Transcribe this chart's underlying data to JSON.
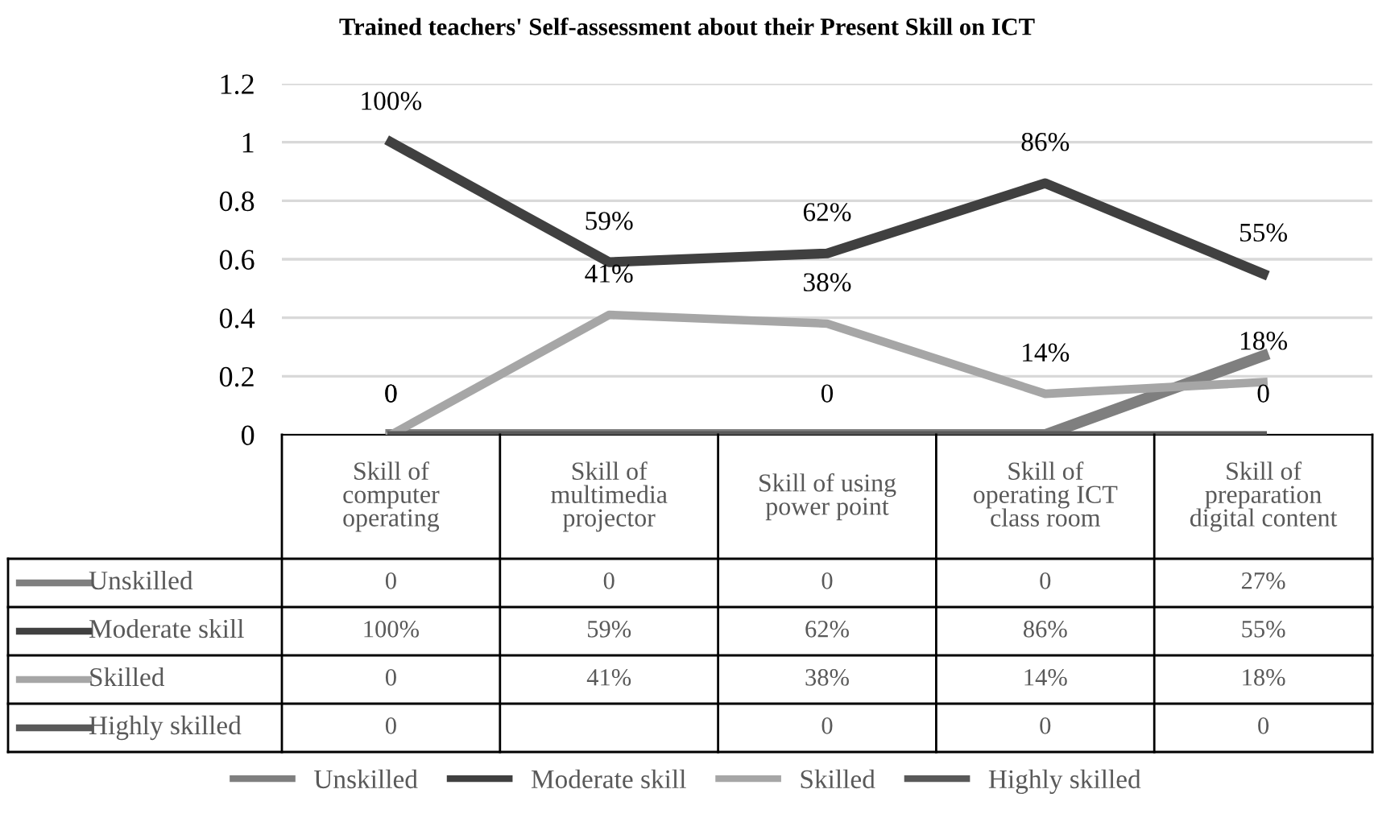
{
  "chart_data": {
    "type": "line",
    "title": "Trained teachers' Self-assessment about their Present Skill on ICT",
    "categories": [
      "Skill of\ncomputer\noperating",
      "Skill of\nmultimedia\nprojector",
      "Skill of using\npower point",
      "Skill of\noperating ICT\nclass room",
      "Skill of\npreparation\ndigital content"
    ],
    "series": [
      {
        "name": "Unskilled",
        "color": "#7f7f7f",
        "values": [
          0,
          0,
          0,
          0,
          0.27
        ],
        "value_labels": [
          "0",
          "0",
          "0",
          "0",
          "27%"
        ]
      },
      {
        "name": "Moderate skill",
        "color": "#404040",
        "values": [
          1.0,
          0.59,
          0.62,
          0.86,
          0.55
        ],
        "value_labels": [
          "100%",
          "59%",
          "62%",
          "86%",
          "55%"
        ]
      },
      {
        "name": "Skilled",
        "color": "#a6a6a6",
        "values": [
          0,
          0.41,
          0.38,
          0.14,
          0.18
        ],
        "value_labels": [
          "0",
          "41%",
          "38%",
          "14%",
          "18%"
        ]
      },
      {
        "name": "Highly skilled",
        "color": "#595959",
        "values": [
          0,
          null,
          0,
          0,
          0
        ],
        "value_labels": [
          "0",
          null,
          "0",
          "0",
          "0"
        ]
      }
    ],
    "ylim": [
      0,
      1.2
    ],
    "yticks": [
      0,
      0.2,
      0.4,
      0.6,
      0.8,
      1,
      1.2
    ],
    "grid": "y",
    "legend": "bottom",
    "marker": "none",
    "line_style": "solid",
    "data_labels": true
  }
}
